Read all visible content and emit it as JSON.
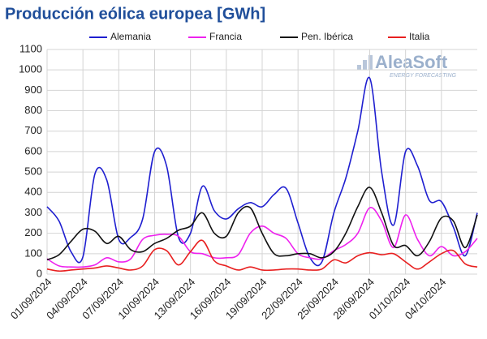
{
  "chart_data": {
    "type": "line",
    "title": "Producción eólica europea [GWh]",
    "logo": {
      "name": "AleaSoft",
      "tagline": "ENERGY FORECASTING"
    },
    "categories": [
      "01/09/2024",
      null,
      null,
      "04/09/2024",
      null,
      null,
      "07/09/2024",
      null,
      null,
      "10/09/2024",
      null,
      null,
      "13/09/2024",
      null,
      null,
      "16/09/2024",
      null,
      null,
      "19/09/2024",
      null,
      null,
      "22/09/2024",
      null,
      null,
      "25/09/2024",
      null,
      null,
      "28/09/2024",
      null,
      null,
      "01/10/2024",
      null,
      null,
      "04/10/2024",
      null,
      null,
      null
    ],
    "series": [
      {
        "name": "Alemania",
        "color": "#1f1fd0",
        "values": [
          330,
          260,
          110,
          85,
          490,
          460,
          170,
          180,
          270,
          600,
          530,
          180,
          200,
          430,
          310,
          270,
          320,
          350,
          330,
          390,
          420,
          250,
          80,
          60,
          300,
          470,
          700,
          960,
          500,
          240,
          600,
          530,
          360,
          355,
          230,
          90,
          300
        ]
      },
      {
        "name": "Francia",
        "color": "#ee22ee",
        "values": [
          75,
          40,
          35,
          35,
          45,
          80,
          60,
          75,
          170,
          190,
          195,
          185,
          110,
          100,
          80,
          80,
          95,
          200,
          235,
          200,
          175,
          100,
          80,
          75,
          115,
          145,
          200,
          325,
          260,
          130,
          290,
          170,
          90,
          135,
          90,
          110,
          175
        ]
      },
      {
        "name": "Pen. Ibérica",
        "color": "#111111",
        "values": [
          70,
          95,
          160,
          220,
          210,
          150,
          185,
          120,
          110,
          150,
          175,
          215,
          235,
          300,
          200,
          185,
          300,
          325,
          200,
          100,
          90,
          100,
          100,
          80,
          110,
          200,
          330,
          425,
          300,
          140,
          140,
          90,
          160,
          275,
          260,
          130,
          290
        ]
      },
      {
        "name": "Italia",
        "color": "#e82020",
        "values": [
          25,
          15,
          20,
          25,
          30,
          40,
          30,
          20,
          40,
          120,
          115,
          45,
          110,
          165,
          65,
          40,
          20,
          35,
          20,
          20,
          25,
          25,
          20,
          25,
          70,
          55,
          90,
          105,
          95,
          100,
          60,
          25,
          60,
          100,
          115,
          50,
          35
        ]
      }
    ],
    "ylim": [
      0,
      1100
    ],
    "yticks": [
      0,
      100,
      200,
      300,
      400,
      500,
      600,
      700,
      800,
      900,
      1000,
      1100
    ],
    "grid": true,
    "legend": "top"
  }
}
